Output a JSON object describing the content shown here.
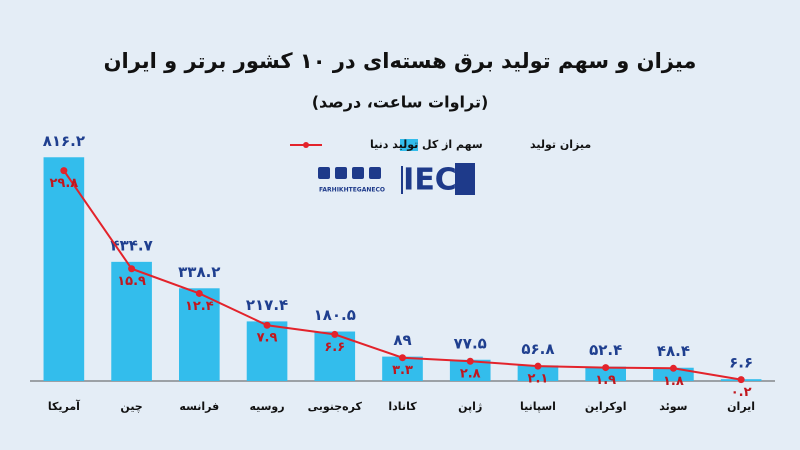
{
  "chart_data": {
    "type": "bar",
    "title": "میزان و سهم تولید برق هسته‌ای در ۱۰ کشور برتر و ایران",
    "subtitle": "(تراوات ساعت، درصد)",
    "branding": {
      "logo": "IEC",
      "handle": "FARHIKHTEGANECO"
    },
    "categories": [
      "آمریکا",
      "چین",
      "فرانسه",
      "روسیه",
      "کره‌جنوبی",
      "کانادا",
      "ژاپن",
      "اسپانیا",
      "اوکراین",
      "سوئد",
      "ایران"
    ],
    "series": [
      {
        "name": "میزان تولید",
        "type": "bar",
        "color": "#33bdec",
        "values": [
          816.2,
          434.7,
          338.2,
          217.4,
          180.5,
          89,
          77.5,
          56.8,
          52.4,
          48.4,
          6.6
        ],
        "value_labels": [
          "۸۱۶.۲",
          "۴۳۴.۷",
          "۳۳۸.۲",
          "۲۱۷.۴",
          "۱۸۰.۵",
          "۸۹",
          "۷۷.۵",
          "۵۶.۸",
          "۵۲.۴",
          "۴۸.۴",
          "۶.۶"
        ]
      },
      {
        "name": "سهم از کل تولید دنیا",
        "type": "line",
        "axis": "y2",
        "color": "#e3232b",
        "values": [
          29.8,
          15.9,
          12.4,
          7.9,
          6.6,
          3.3,
          2.8,
          2.1,
          1.9,
          1.8,
          0.2
        ],
        "value_labels": [
          "۲۹.۸",
          "۱۵.۹",
          "۱۲.۴",
          "۷.۹",
          "۶.۶",
          "۳.۳",
          "۲.۸",
          "۲.۱",
          "۱.۹",
          "۱.۸",
          "۰.۲"
        ]
      }
    ],
    "ylim": [
      0,
      850
    ],
    "y2lim": [
      0,
      33
    ]
  }
}
